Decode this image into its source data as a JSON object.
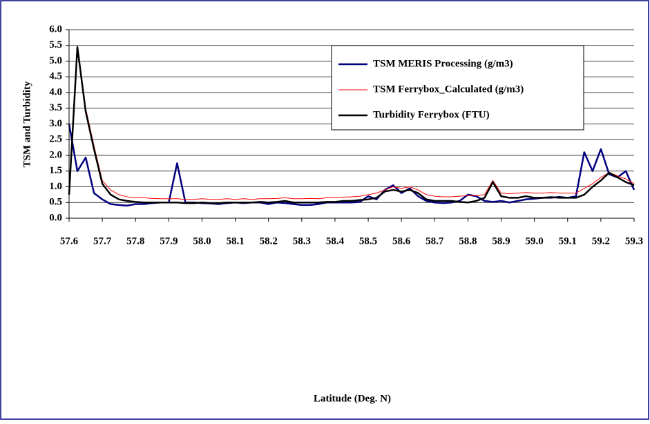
{
  "chart_data": {
    "type": "line",
    "xlabel": "Latitude (Deg. N)",
    "ylabel": "TSM and Turbidity",
    "x": [
      57.6,
      57.625,
      57.65,
      57.675,
      57.7,
      57.725,
      57.75,
      57.775,
      57.8,
      57.825,
      57.85,
      57.875,
      57.9,
      57.925,
      57.95,
      57.975,
      58.0,
      58.025,
      58.05,
      58.075,
      58.1,
      58.125,
      58.15,
      58.175,
      58.2,
      58.225,
      58.25,
      58.275,
      58.3,
      58.325,
      58.35,
      58.375,
      58.4,
      58.425,
      58.45,
      58.475,
      58.5,
      58.525,
      58.55,
      58.575,
      58.6,
      58.625,
      58.65,
      58.675,
      58.7,
      58.725,
      58.75,
      58.775,
      58.8,
      58.825,
      58.85,
      58.875,
      58.9,
      58.925,
      58.95,
      58.975,
      59.0,
      59.025,
      59.05,
      59.075,
      59.1,
      59.125,
      59.15,
      59.175,
      59.2,
      59.225,
      59.25,
      59.275,
      59.3
    ],
    "series": [
      {
        "name": "TSM MERIS Processing (g/m3)",
        "color": "#000080",
        "width": 2.5,
        "values": [
          3.0,
          1.5,
          1.93,
          0.8,
          0.6,
          0.45,
          0.42,
          0.4,
          0.45,
          0.45,
          0.48,
          0.5,
          0.5,
          1.75,
          0.5,
          0.5,
          0.48,
          0.47,
          0.45,
          0.48,
          0.5,
          0.48,
          0.5,
          0.5,
          0.45,
          0.5,
          0.48,
          0.45,
          0.42,
          0.42,
          0.45,
          0.5,
          0.5,
          0.5,
          0.5,
          0.52,
          0.7,
          0.6,
          0.9,
          1.05,
          0.8,
          0.95,
          0.7,
          0.55,
          0.5,
          0.48,
          0.5,
          0.55,
          0.75,
          0.7,
          0.55,
          0.52,
          0.55,
          0.5,
          0.55,
          0.6,
          0.62,
          0.65,
          0.65,
          0.68,
          0.65,
          0.7,
          2.1,
          1.5,
          2.2,
          1.4,
          1.3,
          1.5,
          0.9
        ]
      },
      {
        "name": "TSM Ferrybox_Calculated (g/m3)",
        "color": "#ff0000",
        "width": 1,
        "values": [
          0.8,
          5.4,
          3.5,
          2.3,
          1.2,
          0.9,
          0.75,
          0.68,
          0.65,
          0.65,
          0.63,
          0.62,
          0.62,
          0.62,
          0.6,
          0.6,
          0.62,
          0.6,
          0.6,
          0.62,
          0.6,
          0.62,
          0.6,
          0.62,
          0.62,
          0.63,
          0.65,
          0.62,
          0.62,
          0.63,
          0.62,
          0.65,
          0.65,
          0.67,
          0.68,
          0.7,
          0.75,
          0.8,
          0.9,
          1.0,
          0.95,
          1.0,
          0.9,
          0.75,
          0.7,
          0.68,
          0.68,
          0.7,
          0.72,
          0.72,
          0.75,
          1.2,
          0.8,
          0.78,
          0.8,
          0.82,
          0.8,
          0.8,
          0.82,
          0.8,
          0.8,
          0.8,
          0.95,
          1.1,
          1.3,
          1.45,
          1.35,
          1.25,
          1.1
        ]
      },
      {
        "name": "Turbidity Ferrybox (FTU)",
        "color": "#000000",
        "width": 2.5,
        "values": [
          0.75,
          5.45,
          3.4,
          2.2,
          1.1,
          0.75,
          0.6,
          0.55,
          0.52,
          0.5,
          0.5,
          0.5,
          0.5,
          0.5,
          0.48,
          0.48,
          0.5,
          0.48,
          0.48,
          0.5,
          0.5,
          0.5,
          0.5,
          0.52,
          0.5,
          0.52,
          0.55,
          0.5,
          0.5,
          0.5,
          0.5,
          0.52,
          0.52,
          0.55,
          0.55,
          0.58,
          0.6,
          0.65,
          0.85,
          0.9,
          0.85,
          0.9,
          0.8,
          0.6,
          0.55,
          0.55,
          0.55,
          0.52,
          0.5,
          0.55,
          0.65,
          1.15,
          0.7,
          0.65,
          0.65,
          0.7,
          0.65,
          0.65,
          0.67,
          0.65,
          0.65,
          0.65,
          0.75,
          1.0,
          1.2,
          1.45,
          1.3,
          1.15,
          1.05
        ]
      }
    ],
    "xlim": [
      57.6,
      59.3
    ],
    "xticks": [
      57.6,
      57.7,
      57.8,
      57.9,
      {
        "value": 58,
        "label": "58.0"
      },
      58.1,
      58.2,
      58.3,
      58.4,
      58.5,
      58.6,
      58.7,
      58.8,
      58.9,
      {
        "value": 59,
        "label": "59.0"
      },
      59.1,
      59.2,
      59.3
    ],
    "ylim": [
      0,
      6
    ],
    "yticks": [
      {
        "value": 0,
        "label": "0.0"
      },
      0.5,
      {
        "value": 1,
        "label": "1.0"
      },
      1.5,
      {
        "value": 2,
        "label": "2.0"
      },
      2.5,
      {
        "value": 3,
        "label": "3.0"
      },
      3.5,
      {
        "value": 4,
        "label": "4.0"
      },
      4.5,
      {
        "value": 5,
        "label": "5.0"
      },
      5.5,
      {
        "value": 6,
        "label": "6.0"
      }
    ],
    "grid": true
  }
}
